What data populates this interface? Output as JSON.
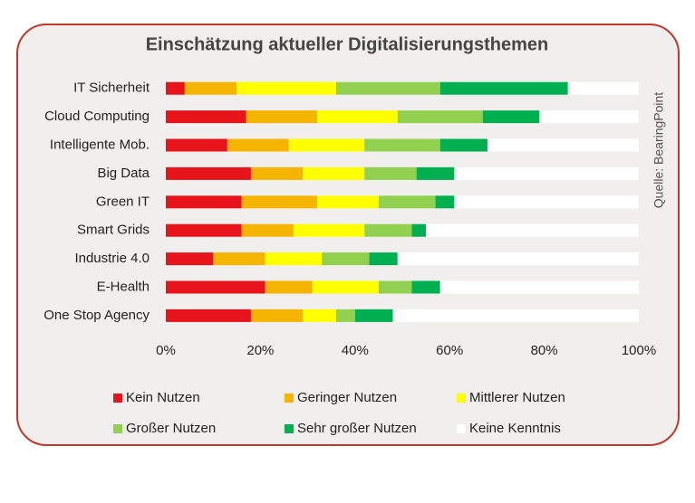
{
  "chart_data": {
    "type": "stacked-bar-horizontal",
    "title": "Einschätzung aktueller Digitalisierungsthemen",
    "source": "Quelle:  BearingPoint",
    "categories": [
      "IT Sicherheit",
      "Cloud Computing",
      "Intelligente Mob.",
      "Big Data",
      "Green IT",
      "Smart Grids",
      "Industrie 4.0",
      "E-Health",
      "One Stop Agency"
    ],
    "series": [
      {
        "name": "Kein Nutzen",
        "color": "#e8141c",
        "values": [
          4,
          17,
          13,
          18,
          16,
          16,
          10,
          21,
          18
        ]
      },
      {
        "name": "Geringer Nutzen",
        "color": "#f5b400",
        "values": [
          11,
          15,
          13,
          11,
          16,
          11,
          11,
          10,
          11
        ]
      },
      {
        "name": "Mittlerer Nutzen",
        "color": "#ffff00",
        "values": [
          21,
          17,
          16,
          13,
          13,
          15,
          12,
          14,
          7
        ]
      },
      {
        "name": "Großer Nutzen",
        "color": "#92d050",
        "values": [
          22,
          18,
          16,
          11,
          12,
          10,
          10,
          7,
          4
        ]
      },
      {
        "name": "Sehr großer Nutzen",
        "color": "#00b050",
        "values": [
          27,
          12,
          10,
          8,
          4,
          3,
          6,
          6,
          8
        ]
      },
      {
        "name": "Keine Kenntnis",
        "color": "#ffffff",
        "values": [
          15,
          21,
          32,
          39,
          39,
          45,
          51,
          42,
          52
        ]
      }
    ],
    "xlim": [
      0,
      100
    ],
    "xticks": [
      {
        "value": 0,
        "label": "0%"
      },
      {
        "value": 20,
        "label": "20%"
      },
      {
        "value": 40,
        "label": "40%"
      },
      {
        "value": 60,
        "label": "60%"
      },
      {
        "value": 80,
        "label": "80%"
      },
      {
        "value": 100,
        "label": "100%"
      }
    ]
  }
}
